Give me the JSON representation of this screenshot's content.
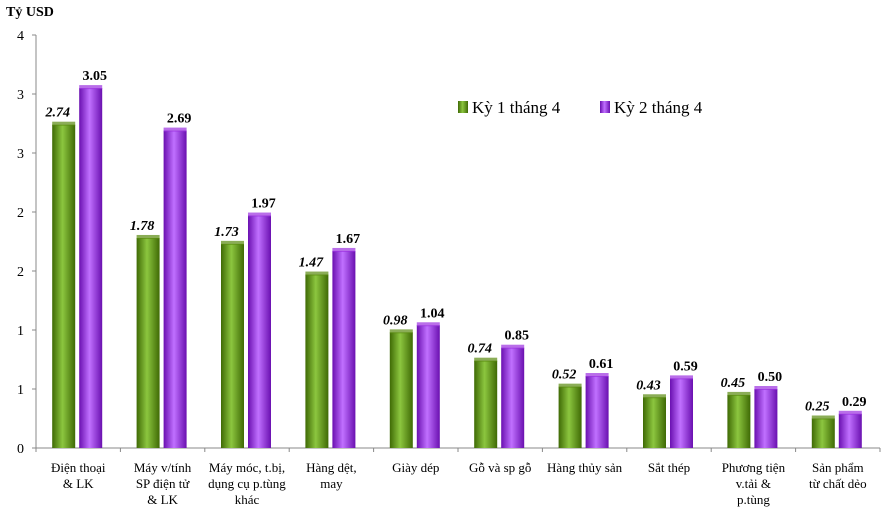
{
  "chart_data": {
    "type": "bar",
    "ylabel": "Tỷ USD",
    "ylim": [
      0,
      3.5
    ],
    "yticks": [
      0,
      0.5,
      1,
      1.5,
      2,
      2.5,
      3,
      3.5
    ],
    "ytick_labels": [
      "0",
      "1",
      "1",
      "2",
      "2",
      "3",
      "3",
      "4"
    ],
    "grid": false,
    "legend_position": "top-right",
    "categories": [
      [
        "Điện thoại",
        "& LK"
      ],
      [
        "Máy v/tính",
        "SP điện tử",
        "& LK"
      ],
      [
        "Máy móc, t.bị,",
        "dụng cụ p.tùng",
        "khác"
      ],
      [
        "Hàng dệt,",
        "may"
      ],
      [
        "Giày dép"
      ],
      [
        "Gỗ và sp gỗ"
      ],
      [
        "Hàng thủy sản"
      ],
      [
        "Sắt thép"
      ],
      [
        "Phương tiện",
        "v.tải &",
        "p.tùng"
      ],
      [
        "Sản phẩm",
        "từ chất dẻo"
      ]
    ],
    "series": [
      {
        "name": "Kỳ 1 tháng 4",
        "color": "#5a8a10",
        "labels": [
          "2.74",
          "1.78",
          "1.73",
          "1.47",
          "0.98",
          "0.74",
          "0.52",
          "0.43",
          "0.45",
          "0.25"
        ],
        "values": [
          2.74,
          1.78,
          1.73,
          1.47,
          0.98,
          0.74,
          0.52,
          0.43,
          0.45,
          0.25
        ]
      },
      {
        "name": "Kỳ 2 tháng 4",
        "color": "#9b30e0",
        "labels": [
          "3.05",
          "2.69",
          "1.97",
          "1.67",
          "1.04",
          "0.85",
          "0.61",
          "0.59",
          "0.50",
          "0.29"
        ],
        "values": [
          3.05,
          2.69,
          1.97,
          1.67,
          1.04,
          0.85,
          0.61,
          0.59,
          0.5,
          0.29
        ]
      }
    ]
  }
}
